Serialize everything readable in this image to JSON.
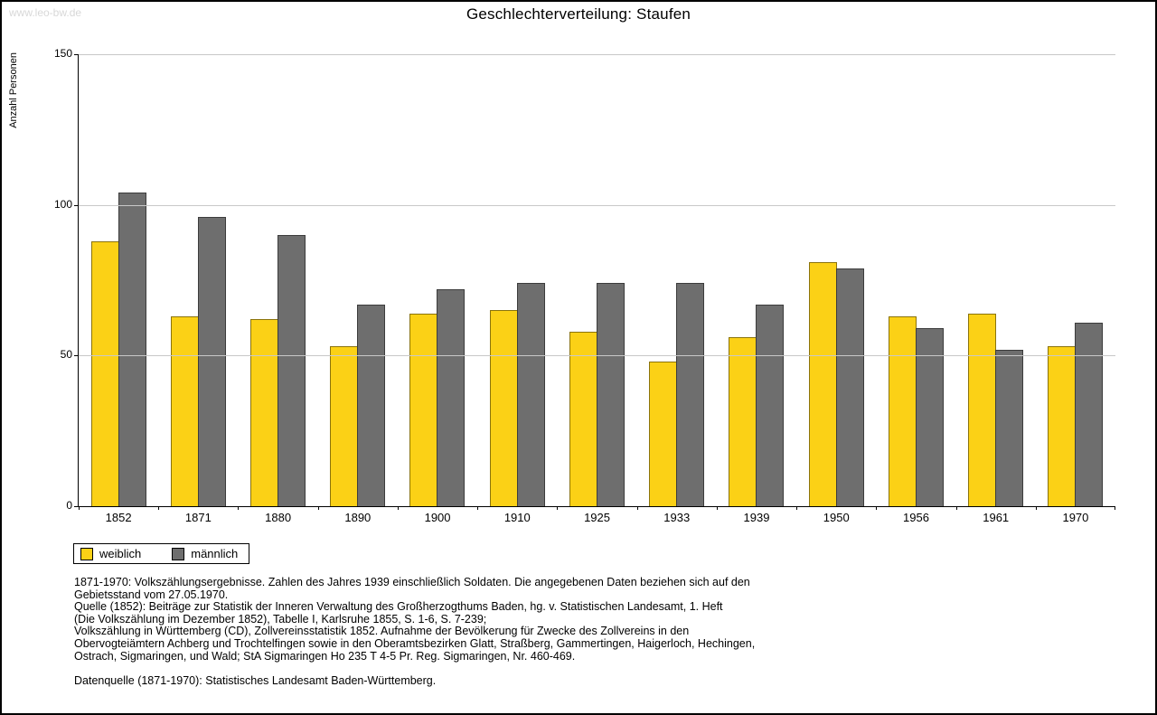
{
  "page": {
    "watermark": "www.leo-bw.de",
    "title": "Geschlechterverteilung: Staufen"
  },
  "chart_data": {
    "type": "bar",
    "title": "Geschlechterverteilung: Staufen",
    "xlabel": "",
    "ylabel": "Anzahl Personen",
    "ylim": [
      0,
      150
    ],
    "yticks": [
      0,
      50,
      100,
      150
    ],
    "grid": true,
    "legend_position": "bottom-left",
    "categories": [
      "1852",
      "1871",
      "1880",
      "1890",
      "1900",
      "1910",
      "1925",
      "1933",
      "1939",
      "1950",
      "1956",
      "1961",
      "1970"
    ],
    "series": [
      {
        "name": "weiblich",
        "key": "weiblich",
        "color": "#fbd116",
        "values": [
          88,
          63,
          62,
          53,
          64,
          65,
          58,
          48,
          56,
          81,
          63,
          64,
          53
        ]
      },
      {
        "name": "männlich",
        "key": "maennlich",
        "color": "#6e6e6e",
        "values": [
          104,
          96,
          90,
          67,
          72,
          74,
          74,
          74,
          67,
          79,
          59,
          52,
          61
        ]
      }
    ]
  },
  "footnotes": {
    "lines": [
      "1871-1970: Volkszählungsergebnisse. Zahlen des Jahres 1939 einschließlich Soldaten. Die angegebenen Daten beziehen sich auf den",
      "Gebietsstand vom 27.05.1970.",
      "Quelle (1852): Beiträge zur Statistik der Inneren Verwaltung des Großherzogthums Baden, hg. v. Statistischen Landesamt, 1. Heft",
      "(Die Volkszählung im Dezember 1852), Tabelle I, Karlsruhe 1855, S. 1-6, S. 7-239;",
      "Volkszählung in Württemberg (CD), Zollvereinsstatistik 1852. Aufnahme der Bevölkerung für Zwecke des Zollvereins in den",
      "Obervogteiämtern Achberg und Trochtelfingen sowie in den Oberamtsbezirken Glatt, Straßberg, Gammertingen, Haigerloch, Hechingen,",
      "Ostrach, Sigmaringen, und Wald; StA Sigmaringen Ho 235 T 4-5 Pr. Reg. Sigmaringen, Nr. 460-469.",
      "",
      "Datenquelle (1871-1970): Statistisches Landesamt Baden-Württemberg."
    ]
  }
}
